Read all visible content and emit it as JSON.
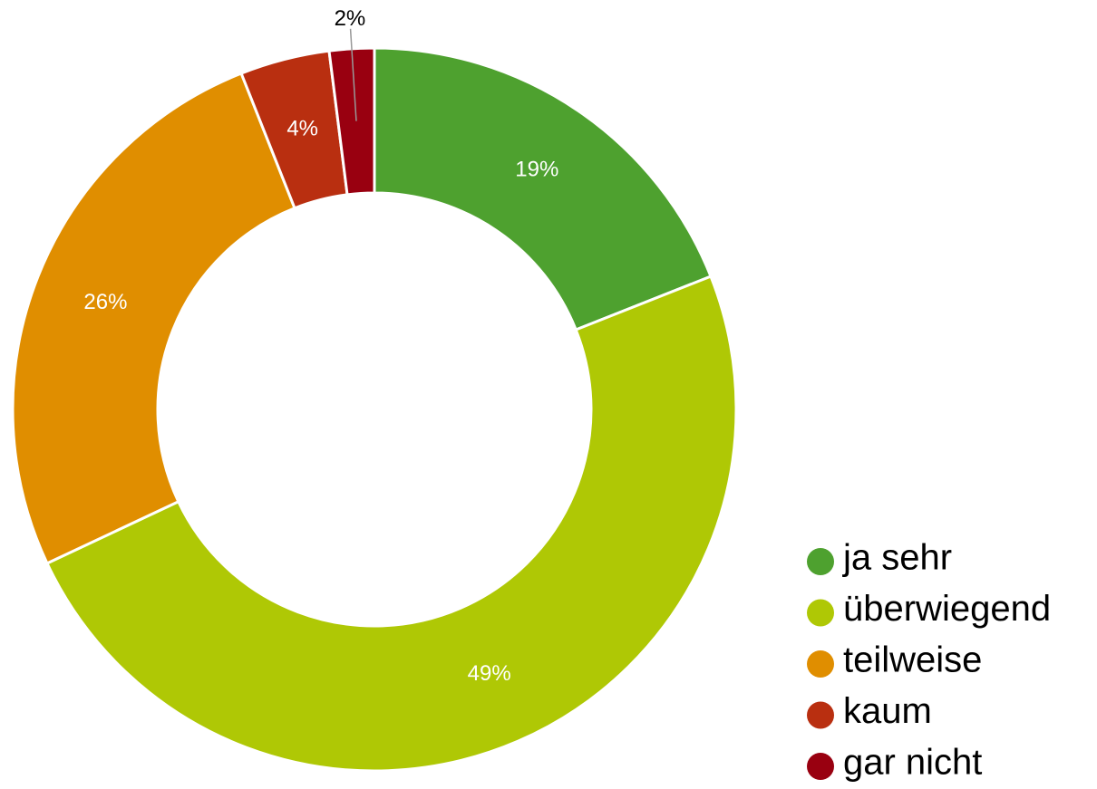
{
  "chart_data": {
    "type": "donut",
    "categories": [
      "ja sehr",
      "überwiegend",
      "teilweise",
      "kaum",
      "gar nicht"
    ],
    "values": [
      19,
      49,
      26,
      4,
      2
    ],
    "value_labels": [
      "19%",
      "49%",
      "26%",
      "4%",
      "2%"
    ],
    "colors": [
      "#4ea12f",
      "#afc805",
      "#e08e00",
      "#b92f10",
      "#990010"
    ]
  }
}
